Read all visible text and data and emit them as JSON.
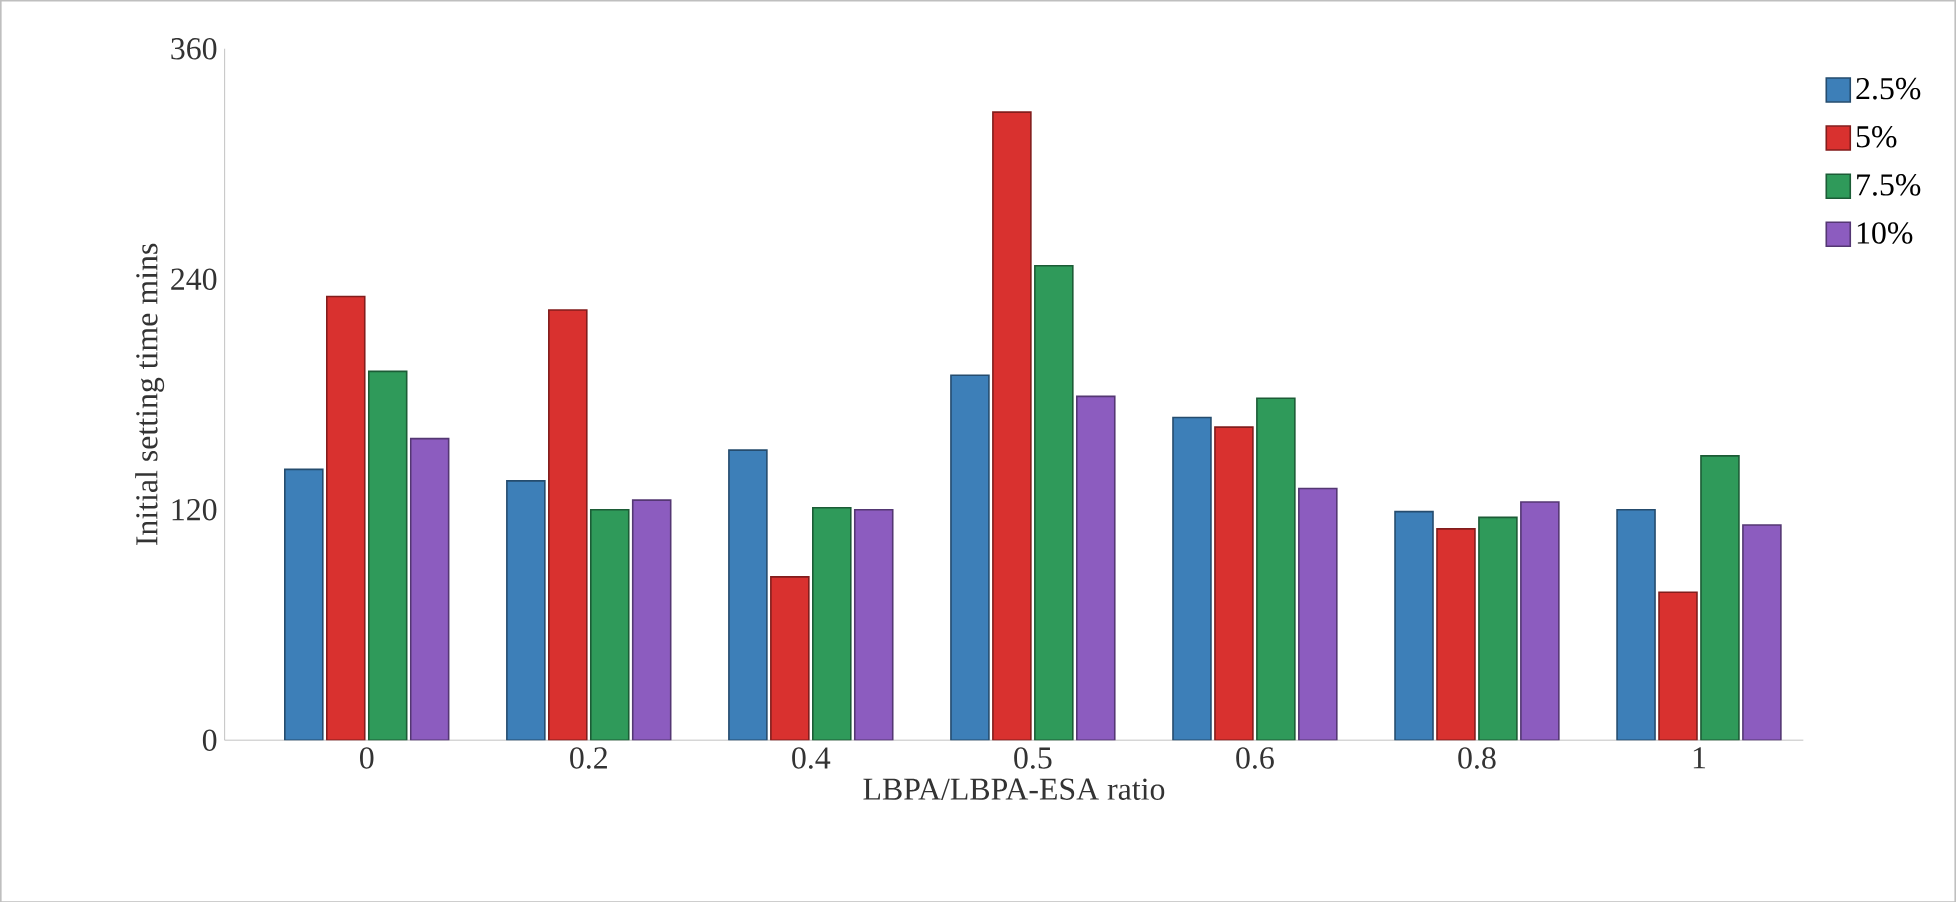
{
  "chart_data": {
    "type": "bar",
    "xlabel": "LBPA/LBPA-ESA ratio",
    "ylabel": "Initial setting time mins",
    "categories": [
      "0",
      "0.2",
      "0.4",
      "0.5",
      "0.6",
      "0.8",
      "1"
    ],
    "series": [
      {
        "name": "2.5%",
        "color": "#3d7fb8",
        "values": [
          141,
          135,
          151,
          190,
          168,
          119,
          120
        ]
      },
      {
        "name": "5%",
        "color": "#d9312f",
        "values": [
          231,
          224,
          85,
          327,
          163,
          110,
          77
        ]
      },
      {
        "name": "7.5%",
        "color": "#2f9a5a",
        "values": [
          192,
          120,
          121,
          247,
          178,
          116,
          148
        ]
      },
      {
        "name": "10%",
        "color": "#8c5cbf",
        "values": [
          157,
          125,
          120,
          179,
          131,
          124,
          112
        ]
      }
    ],
    "ylim": [
      0,
      360
    ],
    "yticks": [
      0,
      120,
      240,
      360
    ],
    "grid": false,
    "legend": "right"
  }
}
